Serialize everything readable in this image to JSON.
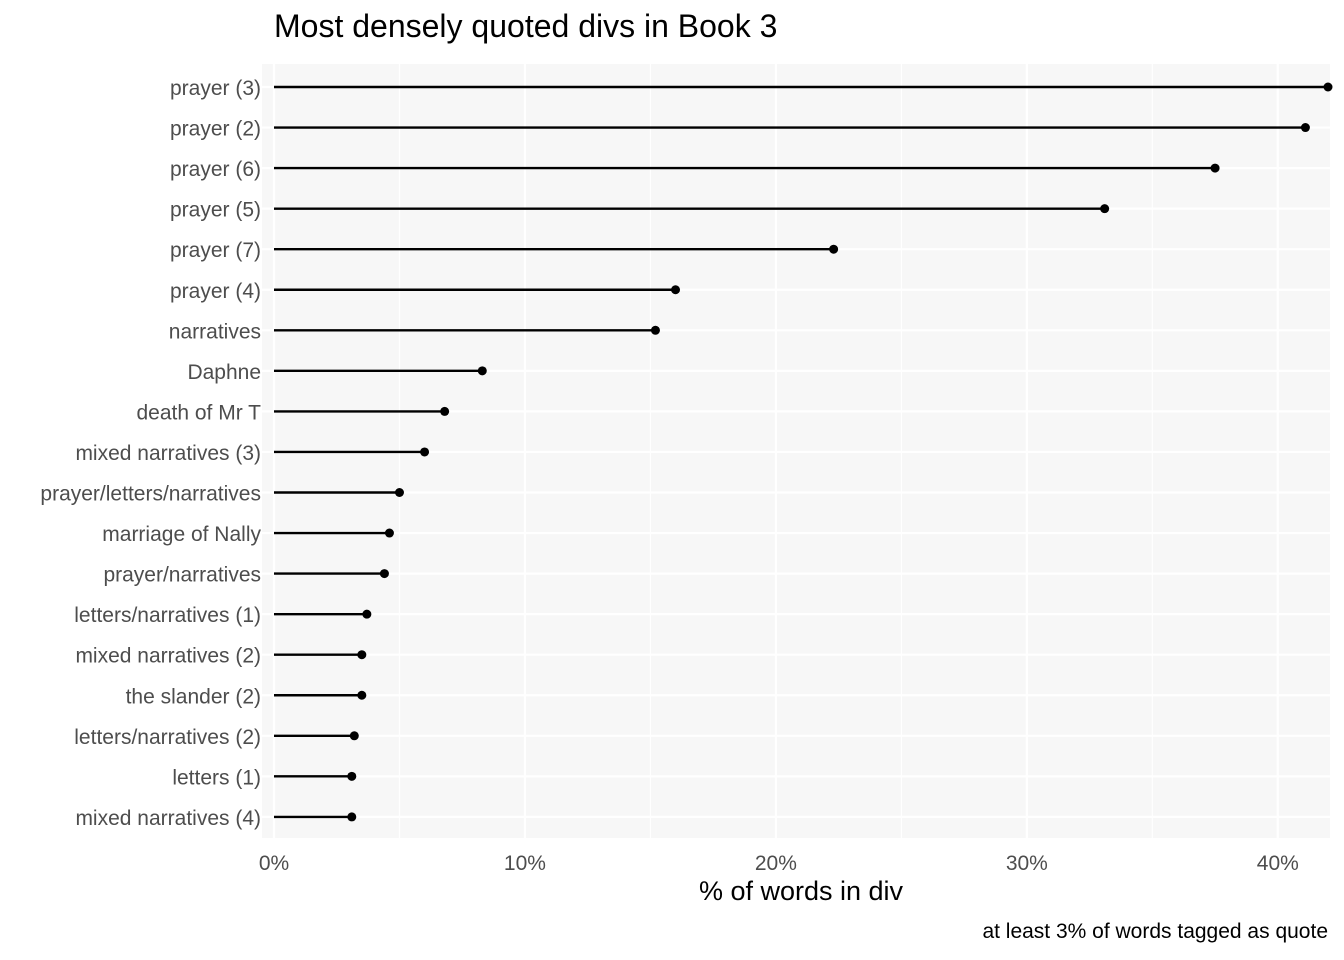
{
  "chart_data": {
    "type": "lollipop",
    "title": "Most densely quoted divs in Book 3",
    "xlabel": "% of words in div",
    "ylabel": "",
    "caption": "at least 3% of words tagged as quote",
    "xlim": [
      0,
      42
    ],
    "xticks": [
      0,
      10,
      20,
      30,
      40
    ],
    "xtick_labels": [
      "0%",
      "10%",
      "20%",
      "30%",
      "40%"
    ],
    "grid": true,
    "panel_background": "#f7f7f7",
    "categories": [
      "prayer (3)",
      "prayer (2)",
      "prayer (6)",
      "prayer (5)",
      "prayer (7)",
      "prayer (4)",
      "narratives",
      "Daphne",
      "death of Mr T",
      "mixed narratives (3)",
      "prayer/letters/narratives",
      "marriage of Nally",
      "prayer/narratives",
      "letters/narratives (1)",
      "mixed narratives (2)",
      "the slander (2)",
      "letters/narratives (2)",
      "letters (1)",
      "mixed narratives (4)"
    ],
    "values": [
      42.0,
      41.1,
      37.5,
      33.1,
      22.3,
      16.0,
      15.2,
      8.3,
      6.8,
      6.0,
      5.0,
      4.6,
      4.4,
      3.7,
      3.5,
      3.5,
      3.2,
      3.1,
      3.1
    ]
  }
}
